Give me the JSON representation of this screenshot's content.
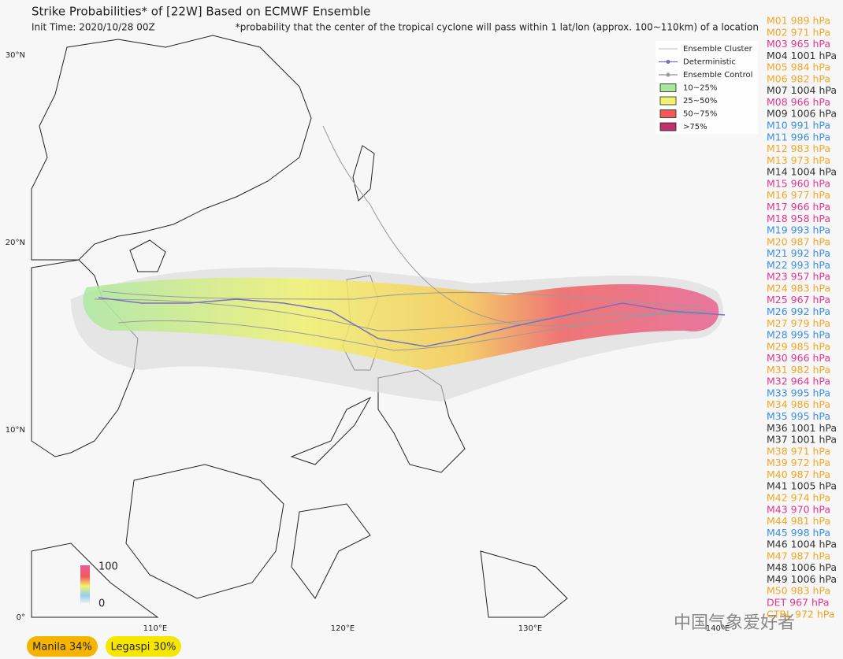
{
  "title": "Strike Probabilities* of [22W] Based on ECMWF Ensemble",
  "init_time": "Init Time: 2020/10/28 00Z",
  "note": "*probability that the center of the tropical cyclone will pass within 1 lat/lon (approx. 100~110km) of a location",
  "lat_labels": [
    "30°N",
    "20°N",
    "10°N",
    "0°"
  ],
  "lon_labels": [
    "110°E",
    "120°E",
    "130°E",
    "140°E"
  ],
  "legend": [
    {
      "label": "Ensemble Cluster",
      "kind": "line",
      "color": "#c8c8c8"
    },
    {
      "label": "Deterministic",
      "kind": "dot",
      "color": "#7b6fc0"
    },
    {
      "label": "Ensemble Control",
      "kind": "dot",
      "color": "#999999"
    },
    {
      "label": "10~25%",
      "kind": "box",
      "color": "#a8e89c"
    },
    {
      "label": "25~50%",
      "kind": "box",
      "color": "#f3f36a"
    },
    {
      "label": "50~75%",
      "kind": "box",
      "color": "#f25a5a"
    },
    {
      "label": ">75%",
      "kind": "box",
      "color": "#c2306a"
    }
  ],
  "colorbar_labels": [
    "100",
    "0"
  ],
  "members": [
    {
      "label": "M01 989 hPa",
      "color": "#f5a623"
    },
    {
      "label": "M02 971 hPa",
      "color": "#f5a623"
    },
    {
      "label": "M03 965 hPa",
      "color": "#e8358c"
    },
    {
      "label": "M04 1001 hPa",
      "color": "#333333"
    },
    {
      "label": "M05 984 hPa",
      "color": "#f5a623"
    },
    {
      "label": "M06 982 hPa",
      "color": "#f5a623"
    },
    {
      "label": "M07 1004 hPa",
      "color": "#333333"
    },
    {
      "label": "M08 966 hPa",
      "color": "#e8358c"
    },
    {
      "label": "M09 1006 hPa",
      "color": "#333333"
    },
    {
      "label": "M10 991 hPa",
      "color": "#3a8ee6"
    },
    {
      "label": "M11 996 hPa",
      "color": "#3a8ee6"
    },
    {
      "label": "M12 983 hPa",
      "color": "#f5a623"
    },
    {
      "label": "M13 973 hPa",
      "color": "#f5a623"
    },
    {
      "label": "M14 1004 hPa",
      "color": "#333333"
    },
    {
      "label": "M15 960 hPa",
      "color": "#e8358c"
    },
    {
      "label": "M16 977 hPa",
      "color": "#f5a623"
    },
    {
      "label": "M17 966 hPa",
      "color": "#e8358c"
    },
    {
      "label": "M18 958 hPa",
      "color": "#e8358c"
    },
    {
      "label": "M19 993 hPa",
      "color": "#3a8ee6"
    },
    {
      "label": "M20 987 hPa",
      "color": "#f5a623"
    },
    {
      "label": "M21 992 hPa",
      "color": "#3a8ee6"
    },
    {
      "label": "M22 993 hPa",
      "color": "#3a8ee6"
    },
    {
      "label": "M23 957 hPa",
      "color": "#e8358c"
    },
    {
      "label": "M24 983 hPa",
      "color": "#f5a623"
    },
    {
      "label": "M25 967 hPa",
      "color": "#e8358c"
    },
    {
      "label": "M26 992 hPa",
      "color": "#3a8ee6"
    },
    {
      "label": "M27 979 hPa",
      "color": "#f5a623"
    },
    {
      "label": "M28 995 hPa",
      "color": "#3a8ee6"
    },
    {
      "label": "M29 985 hPa",
      "color": "#f5a623"
    },
    {
      "label": "M30 966 hPa",
      "color": "#e8358c"
    },
    {
      "label": "M31 982 hPa",
      "color": "#f5a623"
    },
    {
      "label": "M32 964 hPa",
      "color": "#e8358c"
    },
    {
      "label": "M33 995 hPa",
      "color": "#3a8ee6"
    },
    {
      "label": "M34 986 hPa",
      "color": "#f5a623"
    },
    {
      "label": "M35 995 hPa",
      "color": "#3a8ee6"
    },
    {
      "label": "M36 1001 hPa",
      "color": "#333333"
    },
    {
      "label": "M37 1001 hPa",
      "color": "#333333"
    },
    {
      "label": "M38 971 hPa",
      "color": "#f5a623"
    },
    {
      "label": "M39 972 hPa",
      "color": "#f5a623"
    },
    {
      "label": "M40 987 hPa",
      "color": "#f5a623"
    },
    {
      "label": "M41 1005 hPa",
      "color": "#333333"
    },
    {
      "label": "M42 974 hPa",
      "color": "#f5a623"
    },
    {
      "label": "M43 970 hPa",
      "color": "#e8358c"
    },
    {
      "label": "M44 981 hPa",
      "color": "#f5a623"
    },
    {
      "label": "M45 998 hPa",
      "color": "#3a8ee6"
    },
    {
      "label": "M46 1004 hPa",
      "color": "#333333"
    },
    {
      "label": "M47 987 hPa",
      "color": "#f5a623"
    },
    {
      "label": "M48 1006 hPa",
      "color": "#333333"
    },
    {
      "label": "M49 1006 hPa",
      "color": "#333333"
    },
    {
      "label": "M50 983 hPa",
      "color": "#f5a623"
    },
    {
      "label": "DET 967 hPa",
      "color": "#e8358c"
    },
    {
      "label": "CTRL 972 hPa",
      "color": "#f5a623"
    }
  ],
  "badges": [
    {
      "label": "Manila 34%",
      "color": "#f5b400"
    },
    {
      "label": "Legaspi 30%",
      "color": "#f7e600"
    }
  ],
  "watermark": "中国气象爱好者"
}
